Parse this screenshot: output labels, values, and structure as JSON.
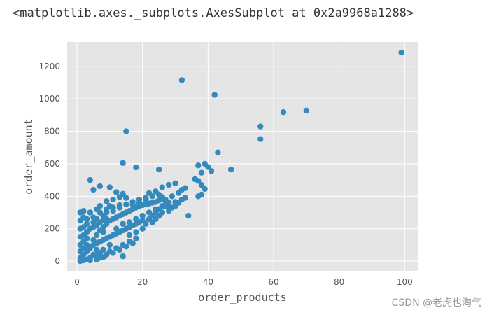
{
  "repr_text": "<matplotlib.axes._subplots.AxesSubplot at 0x2a9968a1288>",
  "watermark": "CSDN @老虎也淘气",
  "chart_data": {
    "type": "scatter",
    "xlabel": "order_products",
    "ylabel": "order_amount",
    "xlim": [
      -3,
      104
    ],
    "ylim": [
      -60,
      1350
    ],
    "xticks": [
      0,
      20,
      40,
      60,
      80,
      100
    ],
    "yticks": [
      0,
      200,
      400,
      600,
      800,
      1000,
      1200
    ],
    "grid": true,
    "colors": {
      "point": "#348abd",
      "plot_bg": "#e5e5e5",
      "grid": "#ffffff"
    },
    "points": [
      [
        99,
        1285
      ],
      [
        32,
        1115
      ],
      [
        42,
        1025
      ],
      [
        70,
        928
      ],
      [
        63,
        918
      ],
      [
        56,
        830
      ],
      [
        56,
        752
      ],
      [
        15,
        800
      ],
      [
        43,
        670
      ],
      [
        47,
        565
      ],
      [
        39,
        600
      ],
      [
        37,
        590
      ],
      [
        40,
        580
      ],
      [
        41,
        555
      ],
      [
        38,
        545
      ],
      [
        36,
        505
      ],
      [
        37,
        495
      ],
      [
        38,
        470
      ],
      [
        39,
        445
      ],
      [
        37,
        400
      ],
      [
        38,
        410
      ],
      [
        34,
        280
      ],
      [
        25,
        565
      ],
      [
        14,
        605
      ],
      [
        18,
        578
      ],
      [
        4,
        500
      ],
      [
        7,
        462
      ],
      [
        5,
        440
      ],
      [
        10,
        455
      ],
      [
        12,
        425
      ],
      [
        14,
        415
      ],
      [
        15,
        390
      ],
      [
        22,
        420
      ],
      [
        24,
        430
      ],
      [
        26,
        455
      ],
      [
        28,
        470
      ],
      [
        30,
        480
      ],
      [
        32,
        440
      ],
      [
        27,
        380
      ],
      [
        29,
        400
      ],
      [
        30,
        365
      ],
      [
        31,
        420
      ],
      [
        33,
        450
      ],
      [
        26,
        395
      ],
      [
        21,
        380
      ],
      [
        19,
        360
      ],
      [
        17,
        350
      ],
      [
        13,
        330
      ],
      [
        11,
        310
      ],
      [
        9,
        300
      ],
      [
        8,
        280
      ],
      [
        6,
        260
      ],
      [
        5,
        240
      ],
      [
        3,
        230
      ],
      [
        2,
        210
      ],
      [
        1,
        200
      ],
      [
        1,
        150
      ],
      [
        2,
        120
      ],
      [
        3,
        100
      ],
      [
        1,
        60
      ],
      [
        2,
        40
      ],
      [
        1,
        20
      ],
      [
        3,
        60
      ],
      [
        4,
        90
      ],
      [
        5,
        130
      ],
      [
        6,
        160
      ],
      [
        7,
        190
      ],
      [
        8,
        210
      ],
      [
        9,
        230
      ],
      [
        10,
        250
      ],
      [
        11,
        260
      ],
      [
        12,
        270
      ],
      [
        13,
        280
      ],
      [
        14,
        290
      ],
      [
        15,
        300
      ],
      [
        16,
        310
      ],
      [
        17,
        320
      ],
      [
        18,
        330
      ],
      [
        19,
        340
      ],
      [
        20,
        345
      ],
      [
        21,
        350
      ],
      [
        22,
        355
      ],
      [
        23,
        360
      ],
      [
        24,
        365
      ],
      [
        25,
        375
      ],
      [
        26,
        380
      ],
      [
        27,
        340
      ],
      [
        28,
        330
      ],
      [
        25,
        320
      ],
      [
        24,
        300
      ],
      [
        23,
        280
      ],
      [
        22,
        260
      ],
      [
        20,
        250
      ],
      [
        19,
        240
      ],
      [
        18,
        230
      ],
      [
        17,
        220
      ],
      [
        16,
        210
      ],
      [
        15,
        200
      ],
      [
        14,
        190
      ],
      [
        13,
        180
      ],
      [
        12,
        170
      ],
      [
        11,
        160
      ],
      [
        10,
        150
      ],
      [
        9,
        140
      ],
      [
        8,
        130
      ],
      [
        7,
        120
      ],
      [
        6,
        110
      ],
      [
        5,
        100
      ],
      [
        4,
        80
      ],
      [
        3,
        70
      ],
      [
        2,
        80
      ],
      [
        1,
        100
      ],
      [
        2,
        160
      ],
      [
        3,
        180
      ],
      [
        4,
        200
      ],
      [
        5,
        210
      ],
      [
        6,
        220
      ],
      [
        7,
        240
      ],
      [
        8,
        250
      ],
      [
        9,
        260
      ],
      [
        4,
        300
      ],
      [
        2,
        310
      ],
      [
        1,
        250
      ],
      [
        3,
        260
      ],
      [
        5,
        270
      ],
      [
        7,
        300
      ],
      [
        9,
        320
      ],
      [
        11,
        330
      ],
      [
        13,
        345
      ],
      [
        15,
        350
      ],
      [
        17,
        365
      ],
      [
        19,
        380
      ],
      [
        21,
        390
      ],
      [
        23,
        400
      ],
      [
        25,
        410
      ],
      [
        12,
        200
      ],
      [
        14,
        230
      ],
      [
        16,
        240
      ],
      [
        18,
        260
      ],
      [
        20,
        280
      ],
      [
        22,
        300
      ],
      [
        24,
        320
      ],
      [
        26,
        340
      ],
      [
        27,
        350
      ],
      [
        28,
        360
      ],
      [
        10,
        60
      ],
      [
        12,
        80
      ],
      [
        14,
        100
      ],
      [
        16,
        120
      ],
      [
        18,
        140
      ],
      [
        9,
        40
      ],
      [
        11,
        50
      ],
      [
        13,
        70
      ],
      [
        15,
        90
      ],
      [
        17,
        110
      ],
      [
        6,
        30
      ],
      [
        7,
        50
      ],
      [
        8,
        70
      ],
      [
        4,
        20
      ],
      [
        5,
        40
      ],
      [
        11,
        380
      ],
      [
        13,
        395
      ],
      [
        9,
        370
      ],
      [
        7,
        340
      ],
      [
        6,
        320
      ],
      [
        15,
        90
      ],
      [
        16,
        160
      ],
      [
        18,
        180
      ],
      [
        20,
        200
      ],
      [
        21,
        230
      ],
      [
        23,
        240
      ],
      [
        24,
        260
      ],
      [
        25,
        280
      ],
      [
        26,
        300
      ],
      [
        28,
        310
      ],
      [
        29,
        330
      ],
      [
        30,
        340
      ],
      [
        31,
        360
      ],
      [
        32,
        380
      ],
      [
        33,
        390
      ],
      [
        14,
        30
      ],
      [
        6,
        70
      ],
      [
        3,
        140
      ],
      [
        10,
        100
      ],
      [
        8,
        180
      ],
      [
        2,
        5
      ],
      [
        1,
        0
      ],
      [
        3,
        10
      ],
      [
        4,
        5
      ],
      [
        6,
        10
      ],
      [
        7,
        20
      ],
      [
        8,
        25
      ],
      [
        2,
        270
      ],
      [
        1,
        300
      ],
      [
        10,
        340
      ]
    ]
  }
}
